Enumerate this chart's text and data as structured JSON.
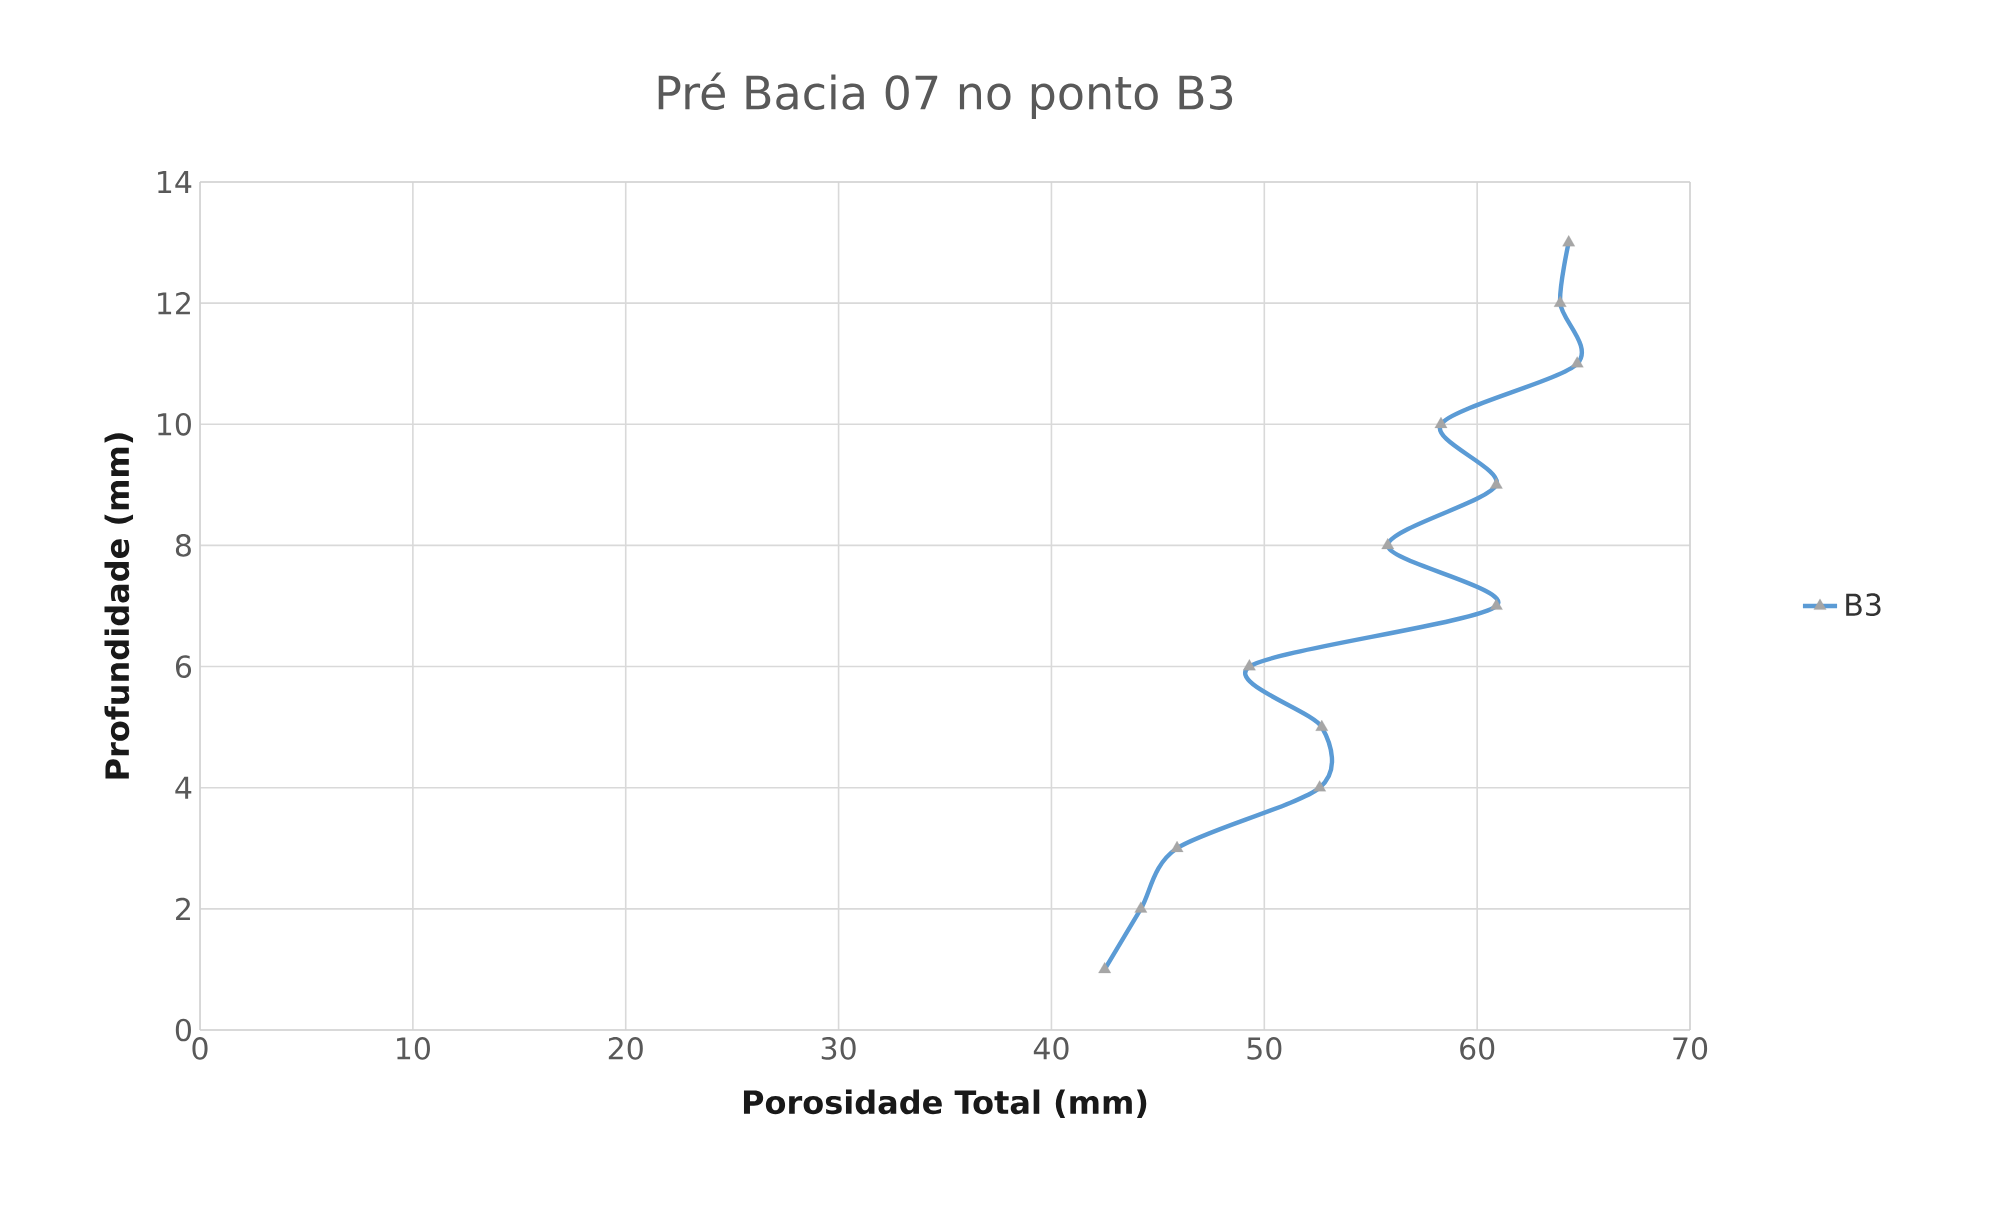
{
  "chart_data": {
    "type": "line",
    "title": "Pré Bacia 07 no ponto B3",
    "xlabel": "Porosidade Total (mm)",
    "ylabel": "Profundidade (mm)",
    "series": [
      {
        "name": "B3",
        "color": "#5b9bd5",
        "x": [
          42.5,
          44.2,
          45.9,
          52.6,
          52.7,
          49.3,
          60.9,
          55.8,
          60.9,
          58.3,
          64.7,
          63.9,
          64.3
        ],
        "values": [
          1,
          2,
          3,
          4,
          5,
          6,
          7,
          8,
          9,
          10,
          11,
          12,
          13
        ]
      }
    ],
    "xlim": [
      0,
      70
    ],
    "xticks": [
      0,
      10,
      20,
      30,
      40,
      50,
      60,
      70
    ],
    "ylim": [
      0,
      14
    ],
    "yticks": [
      0,
      2,
      4,
      6,
      8,
      10,
      12,
      14
    ],
    "grid": true,
    "legend": "right",
    "marker": "triangle",
    "line_style": "solid"
  }
}
